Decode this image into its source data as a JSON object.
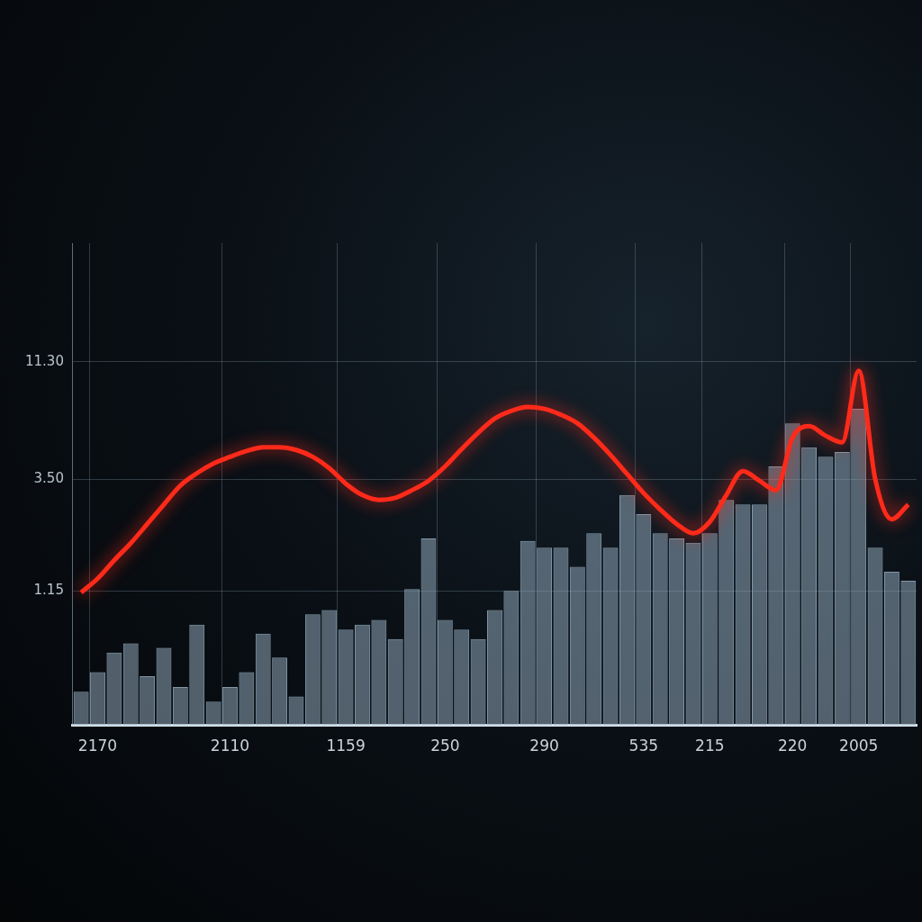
{
  "chart_data": {
    "type": "bar",
    "categories": [
      null,
      "2170",
      null,
      null,
      null,
      null,
      null,
      null,
      null,
      "2110",
      null,
      null,
      null,
      null,
      null,
      null,
      "1159",
      null,
      null,
      null,
      null,
      null,
      "250",
      null,
      null,
      null,
      null,
      null,
      "290",
      null,
      null,
      null,
      null,
      null,
      "535",
      null,
      null,
      null,
      "215",
      null,
      null,
      null,
      null,
      "220",
      null,
      null,
      null,
      "2005",
      null,
      null,
      null
    ],
    "series": [
      {
        "type": "bar",
        "color": "#8fa6b8",
        "values": [
          0.42,
          0.51,
          0.62,
          0.68,
          0.49,
          0.65,
          0.44,
          0.82,
          0.38,
          0.44,
          0.51,
          0.75,
          0.59,
          0.4,
          0.91,
          0.95,
          0.78,
          0.82,
          0.86,
          0.71,
          1.17,
          1.94,
          0.86,
          0.78,
          0.71,
          0.95,
          1.15,
          1.89,
          1.77,
          1.77,
          1.46,
          2.04,
          1.77,
          2.99,
          2.47,
          2.04,
          1.94,
          1.86,
          2.04,
          2.85,
          2.72,
          2.72,
          3.98,
          6.12,
          4.82,
          4.38,
          4.6,
          7.07,
          1.77,
          1.39,
          1.27
        ]
      },
      {
        "type": "line",
        "color": "#ff2a1a",
        "values": [
          1.13,
          1.3,
          1.56,
          1.85,
          2.24,
          2.72,
          3.29,
          3.72,
          4.1,
          4.38,
          4.64,
          4.82,
          4.82,
          4.69,
          4.38,
          3.91,
          3.35,
          2.99,
          2.85,
          2.91,
          3.14,
          3.45,
          3.98,
          4.73,
          5.57,
          6.42,
          6.93,
          7.2,
          7.07,
          6.67,
          6.12,
          5.3,
          4.46,
          3.69,
          3.05,
          2.59,
          2.24,
          2.04,
          2.29,
          2.99,
          3.8,
          3.45,
          3.14,
          5.3,
          5.95,
          5.41,
          5.06,
          10.35,
          3.5,
          2.35,
          2.72
        ]
      }
    ],
    "log": "y",
    "ylim": [
      0.3,
      37
    ],
    "yticks": [
      1.15,
      {
        "value": 3.5,
        "label": "3.50"
      },
      {
        "value": 11.3,
        "label": "11.30"
      }
    ],
    "grid": true
  }
}
